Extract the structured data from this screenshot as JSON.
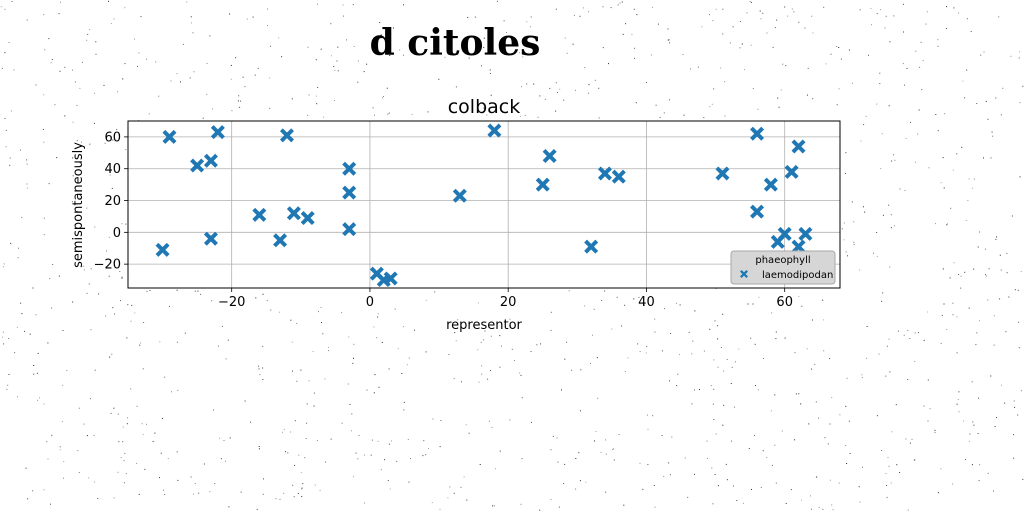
{
  "figure": {
    "suptitle": "d citoles"
  },
  "chart_data": {
    "type": "scatter",
    "title": "colback",
    "xlabel": "representor",
    "ylabel": "semispontaneously",
    "xlim": [
      -35,
      68
    ],
    "ylim": [
      -35,
      70
    ],
    "xticks": [
      -20,
      0,
      20,
      40,
      60
    ],
    "yticks": [
      -20,
      0,
      20,
      40,
      60
    ],
    "grid": true,
    "legend": {
      "title": "phaeophyll",
      "position": "lower-right"
    },
    "series": [
      {
        "name": "laemodipodan",
        "color": "#1f77b4",
        "marker": "x-filled",
        "points": [
          [
            -30,
            -11
          ],
          [
            -29,
            60
          ],
          [
            -25,
            42
          ],
          [
            -23,
            45
          ],
          [
            -23,
            -4
          ],
          [
            -22,
            63
          ],
          [
            -16,
            11
          ],
          [
            -13,
            -5
          ],
          [
            -12,
            61
          ],
          [
            -11,
            12
          ],
          [
            -9,
            9
          ],
          [
            -3,
            40
          ],
          [
            -3,
            25
          ],
          [
            -3,
            2
          ],
          [
            1,
            -26
          ],
          [
            2,
            -30
          ],
          [
            3,
            -29
          ],
          [
            13,
            23
          ],
          [
            18,
            64
          ],
          [
            25,
            30
          ],
          [
            26,
            48
          ],
          [
            32,
            -9
          ],
          [
            34,
            37
          ],
          [
            36,
            35
          ],
          [
            51,
            37
          ],
          [
            56,
            62
          ],
          [
            56,
            13
          ],
          [
            58,
            30
          ],
          [
            59,
            -6
          ],
          [
            60,
            -1
          ],
          [
            61,
            38
          ],
          [
            62,
            54
          ],
          [
            62,
            -9
          ],
          [
            63,
            -1
          ]
        ]
      }
    ]
  }
}
